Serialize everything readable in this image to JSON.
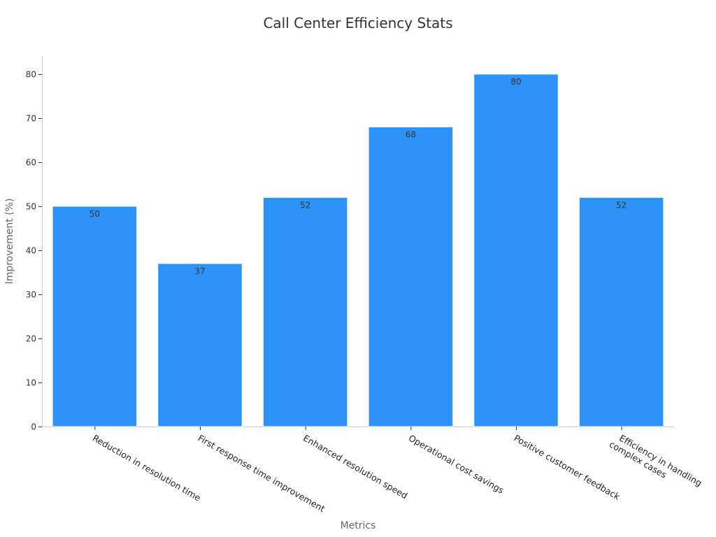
{
  "chart_data": {
    "type": "bar",
    "title": "Call Center Efficiency Stats",
    "xlabel": "Metrics",
    "ylabel": "Improvement (%)",
    "categories": [
      "Reduction in resolution time",
      "First response time improvement",
      "Enhanced resolution speed",
      "Operational cost savings",
      "Positive customer feedback",
      [
        "Efficiency in handling",
        "complex cases"
      ]
    ],
    "values": [
      50,
      37,
      52,
      68,
      80,
      52
    ],
    "ylim": [
      0,
      84
    ],
    "yticks": [
      0,
      10,
      20,
      30,
      40,
      50,
      60,
      70,
      80
    ],
    "grid": false,
    "legend": "none",
    "bar_color": "#2e93f9"
  }
}
